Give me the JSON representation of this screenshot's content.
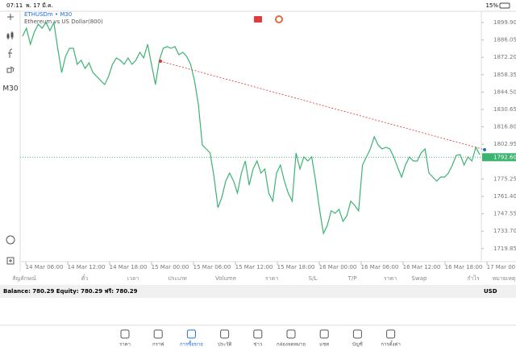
{
  "status_bar": {
    "time": "07:11",
    "date": "พ. 17 มี.ค.",
    "battery": "15%"
  },
  "chart": {
    "symbol": "ETHUSDm • M30",
    "description": "Ethereum vs US Dollar(800)",
    "timeframe": "M30",
    "ylim": [
      1709.45,
      1908.24
    ],
    "yticks": [
      {
        "value": 1899.9,
        "label": "1899.90"
      },
      1886.05,
      {
        "value": 1872.2,
        "label": "1872.20"
      },
      1858.35,
      {
        "value": 1844.5,
        "label": "1844.50"
      },
      1830.65,
      {
        "value": 1816.8,
        "label": "1816.80"
      },
      1802.95,
      1775.25,
      {
        "value": 1761.4,
        "label": "1761.40"
      },
      1747.55,
      {
        "value": 1733.7,
        "label": "1733.70"
      },
      1719.85
    ],
    "current_price": {
      "value": 1792.6,
      "label": "1792.60"
    },
    "trendline": {
      "start": 1869.1,
      "end": 1798.6
    },
    "xticks": [
      "14 Mar 06:00",
      "14 Mar 12:00",
      "14 Mar 18:00",
      "15 Mar 00:00",
      "15 Mar 06:00",
      "15 Mar 12:00",
      "15 Mar 18:00",
      "16 Mar 00:00",
      "16 Mar 06:00",
      "16 Mar 12:00",
      "16 Mar 18:00",
      "17 Mar 00:00"
    ],
    "color": "#3cb371",
    "values": [
      1889.0,
      1895.4,
      1882.6,
      1892.2,
      1898.6,
      1895.4,
      1899.9,
      1893.5,
      1899.9,
      1879.4,
      1860.1,
      1873.0,
      1879.4,
      1879.4,
      1866.6,
      1869.8,
      1863.3,
      1867.8,
      1860.1,
      1856.9,
      1853.7,
      1850.5,
      1856.9,
      1866.6,
      1871.7,
      1869.8,
      1866.6,
      1871.7,
      1866.6,
      1869.8,
      1876.2,
      1871.7,
      1882.6,
      1866.6,
      1850.5,
      1869.8,
      1879.4,
      1880.7,
      1879.4,
      1880.7,
      1874.3,
      1876.2,
      1873.0,
      1866.6,
      1853.7,
      1834.5,
      1802.4,
      1799.2,
      1796.0,
      1776.8,
      1752.4,
      1760.8,
      1773.6,
      1780.0,
      1773.6,
      1764.0,
      1780.0,
      1789.6,
      1770.4,
      1783.2,
      1789.6,
      1780.0,
      1783.2,
      1764.0,
      1757.6,
      1780.0,
      1786.4,
      1773.6,
      1764.0,
      1757.6,
      1796.0,
      1783.2,
      1792.8,
      1789.6,
      1792.8,
      1773.6,
      1751.1,
      1731.9,
      1738.3,
      1749.9,
      1747.9,
      1751.1,
      1741.5,
      1746.0,
      1757.6,
      1754.3,
      1749.9,
      1786.4,
      1792.8,
      1799.2,
      1808.9,
      1802.4,
      1799.2,
      1800.5,
      1799.2,
      1792.8,
      1784.5,
      1776.8,
      1786.4,
      1792.8,
      1789.6,
      1789.6,
      1796.0,
      1799.2,
      1780.0,
      1776.8,
      1773.6,
      1776.8,
      1776.8,
      1780.0,
      1786.4,
      1794.1,
      1794.7,
      1786.4,
      1792.8,
      1789.6,
      1800.5,
      1794.7
    ]
  },
  "table": {
    "headers": [
      "สัญลักษณ์",
      "ตั๋ว",
      "เวลา",
      "ประเภท",
      "Volume",
      "ราคา",
      "S/L",
      "T/P",
      "ราคา",
      "Swap",
      "กำไร",
      "หมายเหตุ"
    ],
    "summary": "Balance: 780.29 Equity: 780.29 ฟรี: 780.29",
    "currency": "USD"
  },
  "tabs": [
    "ราคา",
    "กราฟ",
    "การซื้อขาย",
    "ประวัติ",
    "ข่าว",
    "กล่องจดหมาย",
    "แชท",
    "บัญชี",
    "การตั้งค่า"
  ]
}
